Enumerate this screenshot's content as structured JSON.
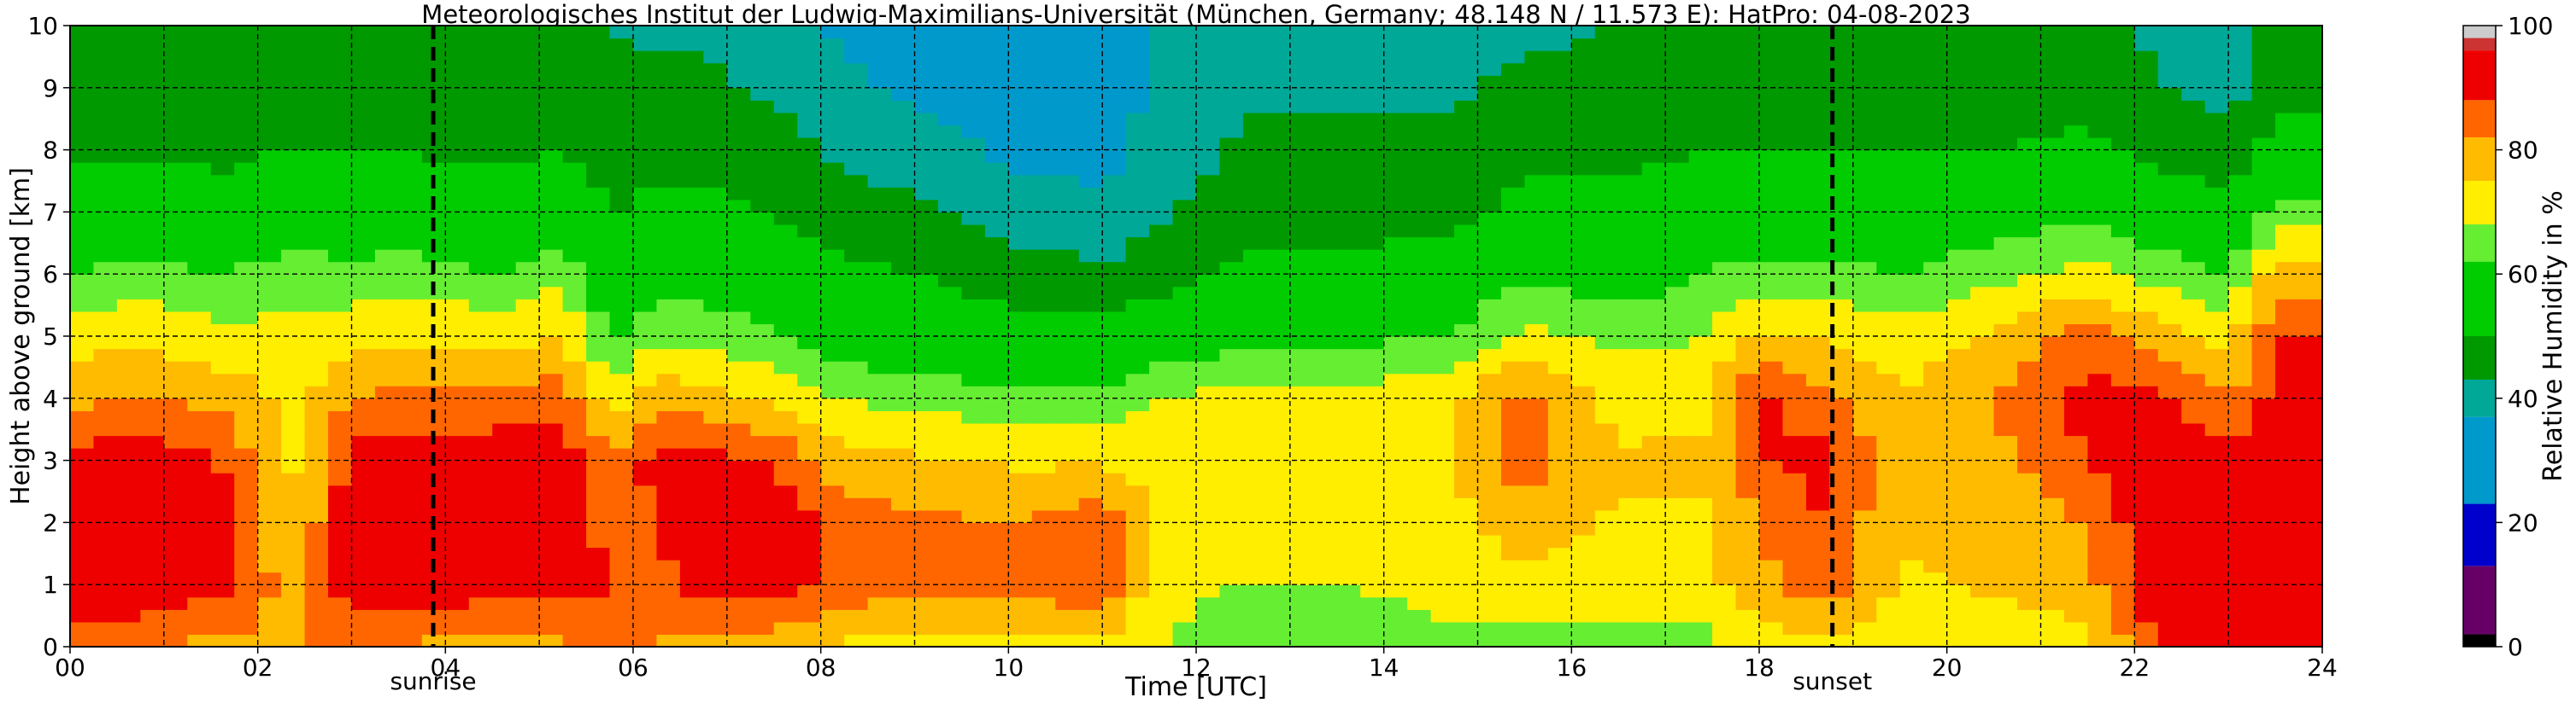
{
  "chart_data": {
    "type": "heatmap",
    "title": "Meteorologisches Institut der Ludwig-Maximilians-Universität (München, Germany; 48.148 N / 11.573 E):    HatPro: 04-08-2023",
    "xlabel": "Time [UTC]",
    "ylabel": "Height above ground [km]",
    "xlim": [
      0,
      24
    ],
    "ylim": [
      0,
      10
    ],
    "x_ticks": [
      "00",
      "02",
      "04",
      "06",
      "08",
      "10",
      "12",
      "14",
      "16",
      "18",
      "20",
      "22",
      "24"
    ],
    "y_ticks": [
      "0",
      "1",
      "2",
      "3",
      "4",
      "5",
      "6",
      "7",
      "8",
      "9",
      "10"
    ],
    "grid": true,
    "colorbar": {
      "label": "Relative Humidity in %",
      "range": [
        0,
        100
      ],
      "ticks": [
        "0",
        "20",
        "40",
        "60",
        "80",
        "100"
      ],
      "segments": [
        {
          "from": 0,
          "to": 2,
          "color": "#000000"
        },
        {
          "from": 2,
          "to": 13,
          "color": "#660066"
        },
        {
          "from": 13,
          "to": 23,
          "color": "#0000cc"
        },
        {
          "from": 23,
          "to": 37,
          "color": "#0099cc"
        },
        {
          "from": 37,
          "to": 43,
          "color": "#00a898"
        },
        {
          "from": 43,
          "to": 50,
          "color": "#009900"
        },
        {
          "from": 50,
          "to": 62,
          "color": "#00cc00"
        },
        {
          "from": 62,
          "to": 68,
          "color": "#66ee33"
        },
        {
          "from": 68,
          "to": 75,
          "color": "#ffee00"
        },
        {
          "from": 75,
          "to": 82,
          "color": "#ffbb00"
        },
        {
          "from": 82,
          "to": 88,
          "color": "#ff6600"
        },
        {
          "from": 88,
          "to": 96,
          "color": "#ee0000"
        },
        {
          "from": 96,
          "to": 98,
          "color": "#cc3333"
        },
        {
          "from": 98,
          "to": 100,
          "color": "#cccccc"
        }
      ]
    },
    "events": [
      {
        "name": "sunrise",
        "time": 3.87
      },
      {
        "name": "sunset",
        "time": 18.78
      }
    ],
    "profiles": [
      {
        "t": 0.0,
        "rh": [
          84,
          92,
          93,
          90,
          80,
          72,
          62,
          55,
          48,
          45,
          44
        ]
      },
      {
        "t": 0.8,
        "rh": [
          83,
          93,
          94,
          92,
          83,
          73,
          64,
          56,
          49,
          46,
          46
        ]
      },
      {
        "t": 1.6,
        "rh": [
          80,
          90,
          91,
          88,
          80,
          70,
          62,
          54,
          48,
          46,
          45
        ]
      },
      {
        "t": 2.4,
        "rh": [
          82,
          78,
          76,
          74,
          72,
          70,
          65,
          58,
          50,
          47,
          45
        ]
      },
      {
        "t": 3.0,
        "rh": [
          84,
          92,
          92,
          91,
          82,
          72,
          64,
          56,
          50,
          47,
          46
        ]
      },
      {
        "t": 3.6,
        "rh": [
          82,
          92,
          93,
          91,
          84,
          74,
          65,
          56,
          50,
          47,
          45
        ]
      },
      {
        "t": 4.5,
        "rh": [
          78,
          92,
          93,
          92,
          84,
          72,
          62,
          54,
          48,
          45,
          44
        ]
      },
      {
        "t": 5.2,
        "rh": [
          80,
          91,
          93,
          92,
          86,
          75,
          66,
          58,
          50,
          47,
          45
        ]
      },
      {
        "t": 5.8,
        "rh": [
          85,
          88,
          85,
          82,
          72,
          60,
          55,
          50,
          46,
          44,
          43
        ]
      },
      {
        "t": 6.2,
        "rh": [
          82,
          86,
          88,
          90,
          80,
          66,
          58,
          52,
          47,
          44,
          42
        ]
      },
      {
        "t": 6.8,
        "rh": [
          80,
          90,
          91,
          90,
          78,
          66,
          58,
          52,
          47,
          44,
          42
        ]
      },
      {
        "t": 7.5,
        "rh": [
          78,
          91,
          92,
          88,
          74,
          62,
          56,
          50,
          46,
          42,
          40
        ]
      },
      {
        "t": 8.2,
        "rh": [
          74,
          86,
          86,
          78,
          68,
          58,
          52,
          46,
          42,
          38,
          36
        ]
      },
      {
        "t": 9.0,
        "rh": [
          73,
          84,
          84,
          76,
          66,
          56,
          50,
          44,
          40,
          36,
          35
        ]
      },
      {
        "t": 10.0,
        "rh": [
          72,
          84,
          82,
          74,
          64,
          54,
          46,
          40,
          36,
          33,
          30
        ]
      },
      {
        "t": 11.0,
        "rh": [
          72,
          88,
          86,
          74,
          64,
          54,
          44,
          39,
          34,
          31,
          28
        ]
      },
      {
        "t": 11.6,
        "rh": [
          68,
          70,
          72,
          74,
          68,
          56,
          46,
          42,
          40,
          40,
          38
        ]
      },
      {
        "t": 12.5,
        "rh": [
          64,
          68,
          70,
          72,
          70,
          60,
          52,
          46,
          44,
          42,
          40
        ]
      },
      {
        "t": 13.5,
        "rh": [
          64,
          68,
          70,
          72,
          70,
          60,
          52,
          46,
          44,
          42,
          40
        ]
      },
      {
        "t": 14.6,
        "rh": [
          66,
          70,
          72,
          74,
          72,
          62,
          54,
          48,
          44,
          42,
          41
        ]
      },
      {
        "t": 15.5,
        "rh": [
          65,
          74,
          78,
          86,
          84,
          70,
          60,
          52,
          48,
          44,
          42
        ]
      },
      {
        "t": 16.5,
        "rh": [
          66,
          72,
          74,
          76,
          72,
          66,
          58,
          52,
          48,
          45,
          43
        ]
      },
      {
        "t": 17.4,
        "rh": [
          66,
          72,
          74,
          76,
          74,
          68,
          62,
          56,
          50,
          46,
          44
        ]
      },
      {
        "t": 18.0,
        "rh": [
          72,
          80,
          82,
          88,
          90,
          76,
          64,
          56,
          50,
          47,
          45
        ]
      },
      {
        "t": 18.7,
        "rh": [
          74,
          86,
          88,
          90,
          84,
          74,
          64,
          56,
          50,
          47,
          45
        ]
      },
      {
        "t": 19.5,
        "rh": [
          68,
          74,
          76,
          78,
          76,
          70,
          62,
          56,
          50,
          46,
          44
        ]
      },
      {
        "t": 20.5,
        "rh": [
          70,
          76,
          78,
          80,
          82,
          76,
          66,
          58,
          50,
          46,
          44
        ]
      },
      {
        "t": 21.5,
        "rh": [
          72,
          80,
          82,
          88,
          90,
          86,
          70,
          60,
          52,
          47,
          45
        ]
      },
      {
        "t": 22.2,
        "rh": [
          88,
          92,
          93,
          92,
          90,
          78,
          66,
          56,
          48,
          44,
          42
        ]
      },
      {
        "t": 23.0,
        "rh": [
          88,
          93,
          93,
          90,
          82,
          72,
          62,
          52,
          46,
          40,
          38
        ]
      },
      {
        "t": 23.5,
        "rh": [
          88,
          92,
          93,
          92,
          90,
          88,
          78,
          64,
          52,
          48,
          46
        ]
      },
      {
        "t": 24.0,
        "rh": [
          88,
          92,
          93,
          92,
          90,
          88,
          78,
          64,
          52,
          48,
          46
        ]
      }
    ]
  }
}
